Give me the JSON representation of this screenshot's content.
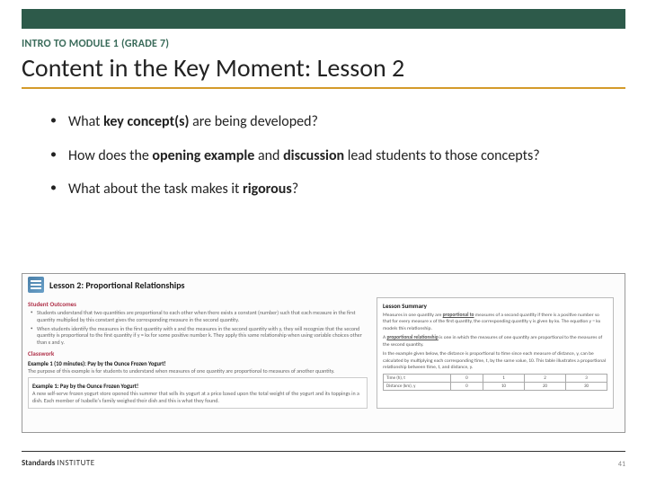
{
  "colors": {
    "top_bar": "#2d5a4a",
    "eyebrow": "#3a6b5a",
    "underline": "#d49a2a",
    "student_red": "#b0324a"
  },
  "eyebrow": "INTRO TO MODULE 1 (GRADE 7)",
  "title": "Content in the Key Moment: Lesson 2",
  "bullets": [
    {
      "pre": "What ",
      "bold1": "key concept(s)",
      "mid": " are being developed?",
      "bold2": "",
      "post": ""
    },
    {
      "pre": "How does the ",
      "bold1": "opening example",
      "mid": " and ",
      "bold2": "discussion",
      "post": " lead students to those concepts?"
    },
    {
      "pre": "What about the task makes it ",
      "bold1": "rigorous",
      "mid": "?",
      "bold2": "",
      "post": ""
    }
  ],
  "lesson": {
    "title": "Lesson 2: Proportional Relationships",
    "outcomes_h": "Student Outcomes",
    "outcomes": [
      "Students understand that two quantities are proportional to each other when there exists a constant (number) such that each measure in the first quantity multiplied by this constant gives the corresponding measure in the second quantity.",
      "When students identify the measures in the first quantity with x and the measures in the second quantity with y, they will recognize that the second quantity is proportional to the first quantity if y = kx for some positive number k. They apply this same relationship when using variable choices other than x and y."
    ],
    "classwork_h": "Classwork",
    "example_h": "Example 1 (10 minutes): Pay by the Ounce Frozen Yogurt!",
    "example_p": "The purpose of this example is for students to understand when measures of one quantity are proportional to measures of another quantity.",
    "inner_h": "Example 1: Pay by the Ounce Frozen Yogurt!",
    "inner_p": "A new self-serve frozen yogurt store opened this summer that sells its yogurt at a price based upon the total weight of the yogurt and its toppings in a dish. Each member of Isabelle's family weighed their dish and this is what they found.",
    "summary_h": "Lesson Summary",
    "summary_p1_a": "Measures in one quantity are ",
    "summary_p1_b": "proportional to",
    "summary_p1_c": " measures of a second quantity if there is a positive number so that for every measure x of the first quantity, the corresponding quantity y is given by kx. The equation y = kx models this relationship.",
    "summary_p2_a": "A ",
    "summary_p2_b": "proportional relationship",
    "summary_p2_c": " is one in which the measures of one quantity are proportional to the measures of the second quantity.",
    "summary_p3": "In the example given below, the distance is proportional to time since each measure of distance, y, can be calculated by multiplying each corresponding time, t, by the same value, 10. This table illustrates a proportional relationship between time, t, and distance, y.",
    "table": {
      "row1": [
        "Time (h), t",
        "0",
        "1",
        "2",
        "3"
      ],
      "row2": [
        "Distance (km), y",
        "0",
        "10",
        "20",
        "30"
      ]
    }
  },
  "footer": {
    "bold": "Standards",
    "thin": "INSTITUTE"
  },
  "page": "41"
}
